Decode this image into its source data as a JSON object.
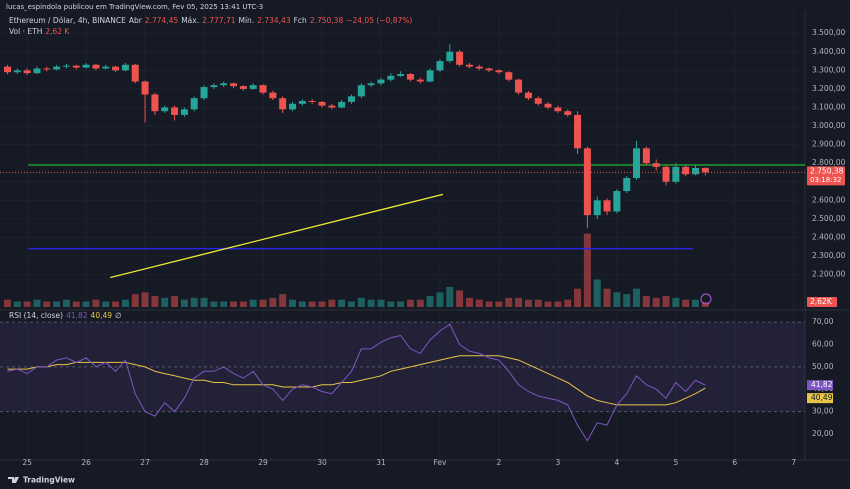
{
  "chart_data": {
    "type": "candlestick",
    "publisher": "lucas_espindola publicou em TradingView.com, Fev 05, 2025 13:41 UTC-3",
    "legend": {
      "symbol": "Ethereum / Dólar, 4h, BINANCE",
      "items": [
        {
          "label": "Abr",
          "value": "2.774,45"
        },
        {
          "label": "Máx.",
          "value": "2.777,71"
        },
        {
          "label": "Mín.",
          "value": "2.734,43"
        },
        {
          "label": "Fch",
          "value": "2.750,38"
        }
      ],
      "change": "−24,05 (−0,87%)"
    },
    "volume_legend": {
      "label": "Vol · ETH",
      "value": "2,62 K"
    },
    "colors": {
      "up": "#26a69a",
      "down": "#ef5350"
    },
    "x": [
      24.667,
      24.833,
      25,
      25.167,
      25.333,
      25.5,
      25.667,
      25.833,
      26,
      26.167,
      26.333,
      26.5,
      26.667,
      26.833,
      27,
      27.167,
      27.333,
      27.5,
      27.667,
      27.833,
      28,
      28.167,
      28.333,
      28.5,
      28.667,
      28.833,
      29,
      29.167,
      29.333,
      29.5,
      29.667,
      29.833,
      30,
      30.167,
      30.333,
      30.5,
      30.667,
      30.833,
      31,
      31.167,
      31.333,
      31.5,
      31.667,
      31.833,
      32,
      32.167,
      32.333,
      32.5,
      32.667,
      32.833,
      33,
      33.167,
      33.333,
      33.5,
      33.667,
      33.833,
      34,
      34.167,
      34.333,
      34.5,
      34.667,
      34.833,
      35,
      35.167,
      35.333,
      35.5,
      35.667,
      35.833,
      36,
      36.167,
      36.333,
      36.5
    ],
    "open": [
      3320,
      3290,
      3300,
      3285,
      3310,
      3305,
      3320,
      3325,
      3315,
      3330,
      3310,
      3320,
      3300,
      3330,
      3240,
      3170,
      3080,
      3100,
      3060,
      3090,
      3150,
      3210,
      3220,
      3230,
      3215,
      3200,
      3220,
      3180,
      3150,
      3090,
      3120,
      3135,
      3130,
      3110,
      3100,
      3130,
      3160,
      3220,
      3230,
      3250,
      3270,
      3280,
      3250,
      3240,
      3300,
      3350,
      3400,
      3330,
      3320,
      3310,
      3300,
      3290,
      3250,
      3180,
      3150,
      3120,
      3100,
      3080,
      3060,
      2880,
      2520,
      2600,
      2540,
      2650,
      2720,
      2880,
      2800,
      2780,
      2700,
      2780,
      2740,
      2774.45
    ],
    "high": [
      3330,
      3310,
      3310,
      3320,
      3320,
      3330,
      3335,
      3330,
      3340,
      3335,
      3330,
      3325,
      3340,
      3335,
      3245,
      3180,
      3110,
      3110,
      3100,
      3160,
      3220,
      3230,
      3240,
      3235,
      3220,
      3230,
      3225,
      3190,
      3160,
      3130,
      3145,
      3145,
      3135,
      3120,
      3140,
      3170,
      3230,
      3240,
      3260,
      3285,
      3295,
      3285,
      3260,
      3310,
      3360,
      3440,
      3410,
      3340,
      3330,
      3315,
      3305,
      3295,
      3255,
      3190,
      3160,
      3130,
      3110,
      3090,
      3080,
      2890,
      2620,
      2610,
      2660,
      2730,
      2920,
      2890,
      2820,
      2790,
      2800,
      2790,
      2790,
      2777.71
    ],
    "low": [
      3280,
      3280,
      3275,
      3280,
      3295,
      3300,
      3310,
      3305,
      3310,
      3300,
      3305,
      3290,
      3295,
      3230,
      3020,
      3060,
      3070,
      3030,
      3050,
      3080,
      3140,
      3200,
      3210,
      3205,
      3190,
      3195,
      3170,
      3140,
      3070,
      3080,
      3110,
      3120,
      3100,
      3090,
      3095,
      3120,
      3150,
      3210,
      3220,
      3240,
      3265,
      3240,
      3230,
      3235,
      3290,
      3340,
      3320,
      3310,
      3300,
      3290,
      3280,
      3240,
      3170,
      3140,
      3110,
      3090,
      3070,
      3050,
      2850,
      2450,
      2500,
      2520,
      2530,
      2640,
      2710,
      2790,
      2760,
      2680,
      2690,
      2730,
      2735,
      2734.43
    ],
    "close": [
      3290,
      3300,
      3285,
      3310,
      3305,
      3320,
      3325,
      3315,
      3330,
      3310,
      3320,
      3300,
      3330,
      3240,
      3170,
      3080,
      3100,
      3060,
      3090,
      3150,
      3210,
      3220,
      3230,
      3215,
      3200,
      3220,
      3180,
      3150,
      3090,
      3120,
      3135,
      3130,
      3110,
      3100,
      3130,
      3160,
      3220,
      3230,
      3250,
      3270,
      3280,
      3250,
      3240,
      3300,
      3350,
      3400,
      3330,
      3320,
      3310,
      3300,
      3290,
      3250,
      3180,
      3150,
      3120,
      3100,
      3080,
      3060,
      2880,
      2520,
      2600,
      2540,
      2650,
      2720,
      2880,
      2800,
      2780,
      2700,
      2780,
      2740,
      2774.45,
      2750.38
    ],
    "volume": [
      4,
      3,
      3,
      4,
      3,
      3,
      4,
      3,
      3,
      4,
      3,
      3,
      4,
      7,
      8,
      6,
      5,
      6,
      4,
      5,
      5,
      3,
      3,
      3,
      3,
      4,
      4,
      5,
      7,
      4,
      3,
      3,
      3,
      4,
      4,
      3,
      5,
      4,
      4,
      3,
      3,
      4,
      4,
      6,
      8,
      11,
      9,
      5,
      4,
      3,
      3,
      5,
      5,
      4,
      4,
      3,
      3,
      4,
      10,
      40,
      15,
      10,
      8,
      7,
      10,
      6,
      5,
      6,
      5,
      4,
      4,
      2.62
    ],
    "volume_ylim": [
      0,
      60
    ],
    "xlim": [
      24.54,
      38.19
    ],
    "xticks": [
      25,
      26,
      27,
      28,
      29,
      30,
      31,
      {
        "value": 32,
        "label": "Fev"
      },
      {
        "value": 33,
        "label": "2"
      },
      {
        "value": 34,
        "label": "3"
      },
      {
        "value": 35,
        "label": "4"
      },
      {
        "value": 36,
        "label": "5"
      },
      {
        "value": 37,
        "label": "6"
      },
      {
        "value": 38,
        "label": "7"
      }
    ],
    "ylim": [
      2020,
      3625
    ],
    "yticks": [
      {
        "value": 2200,
        "label": "2.200,00"
      },
      {
        "value": 2300,
        "label": "2.300,00"
      },
      {
        "value": 2400,
        "label": "2.400,00"
      },
      {
        "value": 2500,
        "label": "2.500,00"
      },
      {
        "value": 2600,
        "label": "2.600,00"
      },
      {
        "value": 2700,
        "label": "2.700,00"
      },
      {
        "value": 2800,
        "label": "2.800,00"
      },
      {
        "value": 2900,
        "label": "2.900,00"
      },
      {
        "value": 3000,
        "label": "3.000,00"
      },
      {
        "value": 3100,
        "label": "3.100,00"
      },
      {
        "value": 3200,
        "label": "3.200,00"
      },
      {
        "value": 3300,
        "label": "3.300,00"
      },
      {
        "value": 3400,
        "label": "3.400,00"
      },
      {
        "value": 3500,
        "label": "3.500,00"
      }
    ],
    "last_price_label": "2.750,38",
    "countdown": "03:18:32",
    "volume_label": "2,62K",
    "horizontal_lines": [
      {
        "value": 2790,
        "x": [
          25.02,
          38.19
        ],
        "color": "#1f9e2a"
      },
      {
        "value": 2340,
        "x": [
          25.02,
          36.29
        ],
        "color": "#2528e0"
      }
    ],
    "trend_line": {
      "x": [
        26.41,
        32.05
      ],
      "y": [
        2184,
        2632
      ],
      "color": "#f0ee3a"
    },
    "rsi": {
      "title": "RSI (14, close)",
      "value_label": "41,82",
      "ma_label": "40,49",
      "symbol": "∅",
      "ylim": [
        8.4,
        74.5
      ],
      "yticks": [
        {
          "value": 20,
          "label": "20,00"
        },
        {
          "value": 30,
          "label": "30,00"
        },
        {
          "value": 40,
          "label": "40,00"
        },
        {
          "value": 50,
          "label": "50,00"
        },
        {
          "value": 60,
          "label": "60,00"
        },
        {
          "value": 70,
          "label": "70,00"
        }
      ],
      "bands": [
        70,
        50,
        30
      ],
      "color": "#7e57c2",
      "ma_color": "#e8c547",
      "values": [
        48,
        49,
        47,
        50,
        50,
        53,
        54,
        52,
        54,
        50,
        52,
        48,
        53,
        38,
        30,
        28,
        34,
        30,
        36,
        45,
        48,
        48,
        50,
        47,
        45,
        48,
        42,
        40,
        35,
        40,
        42,
        41,
        39,
        38,
        43,
        48,
        58,
        58,
        61,
        63,
        64,
        58,
        56,
        62,
        66,
        69,
        60,
        57,
        56,
        54,
        53,
        48,
        42,
        39,
        37,
        36,
        35,
        33,
        24,
        17,
        25,
        24,
        33,
        38,
        46,
        42,
        40,
        36,
        43,
        39,
        44,
        41.82
      ],
      "ma_values": [
        49,
        49,
        49,
        50,
        50,
        51,
        51,
        52,
        52,
        52,
        52,
        52,
        52,
        51,
        50,
        48,
        47,
        46,
        45,
        44,
        44,
        43,
        43,
        42,
        42,
        42,
        42,
        42,
        41,
        41,
        41,
        41,
        42,
        42,
        43,
        43,
        44,
        45,
        46,
        48,
        49,
        50,
        51,
        52,
        53,
        54,
        55,
        55,
        55,
        55,
        55,
        54,
        53,
        51,
        49,
        47,
        45,
        43,
        40,
        37,
        35,
        34,
        33,
        33,
        33,
        33,
        33,
        33,
        34,
        36,
        38,
        40.49
      ]
    },
    "footer": "TradingView"
  }
}
